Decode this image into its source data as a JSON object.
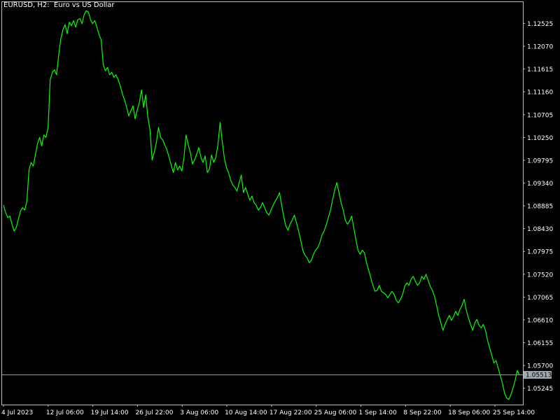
{
  "chart_window": {
    "symbol_label": "EURUSD, H2:  Euro vs US Dollar",
    "background_color": "#000000",
    "line_color": "#00ff00",
    "axis_color": "#c0c0c0",
    "bid_line_color": "#9a9a9a",
    "current_price_label": "1.05513",
    "current_price_bg": "#a0a8b0"
  },
  "chart_data": {
    "type": "line",
    "title": "EURUSD, H2:  Euro vs US Dollar",
    "xlabel": "",
    "ylabel": "",
    "grid": false,
    "ylim": [
      1.0492,
      1.1295
    ],
    "y_ticks": [
      "1.12525",
      "1.12070",
      "1.11615",
      "1.11160",
      "1.10705",
      "1.10250",
      "1.09795",
      "1.09340",
      "1.08885",
      "1.08430",
      "1.07975",
      "1.07520",
      "1.07065",
      "1.06610",
      "1.06155",
      "1.05700",
      "1.05245"
    ],
    "x_ticks": [
      "4 Jul 2023",
      "12 Jul 06:00",
      "19 Jul 14:00",
      "26 Jul 22:00",
      "3 Aug 06:00",
      "10 Aug 14:00",
      "17 Aug 22:00",
      "25 Aug 06:00",
      "1 Sep 14:00",
      "8 Sep 22:00",
      "18 Sep 06:00",
      "25 Sep 14:00"
    ],
    "current_price": 1.05513,
    "series": [
      {
        "values": [
          1.089,
          1.0875,
          1.0865,
          1.0868,
          1.0852,
          1.0838,
          1.0845,
          1.0862,
          1.0878,
          1.0885,
          1.088,
          1.0898,
          1.096,
          1.0975,
          1.0968,
          1.099,
          1.1012,
          1.1025,
          1.1008,
          1.103,
          1.1025,
          1.1045,
          1.114,
          1.1155,
          1.116,
          1.115,
          1.119,
          1.1222,
          1.124,
          1.125,
          1.1232,
          1.1255,
          1.1248,
          1.1258,
          1.1245,
          1.126,
          1.1262,
          1.1252,
          1.127,
          1.1278,
          1.1275,
          1.126,
          1.1252,
          1.1258,
          1.1245,
          1.123,
          1.122,
          1.117,
          1.1158,
          1.1165,
          1.115,
          1.1155,
          1.1145,
          1.115,
          1.114,
          1.1128,
          1.1112,
          1.11,
          1.1085,
          1.1068,
          1.1078,
          1.1088,
          1.1062,
          1.108,
          1.1095,
          1.112,
          1.1085,
          1.111,
          1.1065,
          1.104,
          1.098,
          1.0995,
          1.1015,
          1.1045,
          1.1025,
          1.102,
          1.101,
          1.1,
          1.0985,
          1.097,
          1.0955,
          1.0975,
          1.096,
          1.0968,
          1.0958,
          1.0985,
          1.103,
          1.101,
          1.0995,
          1.0972,
          1.098,
          1.0992,
          1.1005,
          1.0985,
          1.0975,
          1.0988,
          1.0955,
          1.0962,
          1.099,
          1.0975,
          1.0985,
          1.101,
          1.1055,
          1.1018,
          1.0985,
          1.0965,
          1.0955,
          1.094,
          1.093,
          1.0925,
          1.0918,
          1.0935,
          1.095,
          1.0915,
          1.0925,
          1.0912,
          1.09,
          1.0908,
          1.0895,
          1.089,
          1.088,
          1.0885,
          1.0895,
          1.0885,
          1.0875,
          1.087,
          1.088,
          1.089,
          1.0898,
          1.0905,
          1.0915,
          1.089,
          1.0868,
          1.0848,
          1.084,
          1.0852,
          1.086,
          1.087,
          1.0855,
          1.0838,
          1.082,
          1.08,
          1.079,
          1.0785,
          1.0775,
          1.078,
          1.0792,
          1.08,
          1.0805,
          1.0815,
          1.083,
          1.0838,
          1.085,
          1.0865,
          1.088,
          1.09,
          1.092,
          1.0935,
          1.0915,
          1.0895,
          1.088,
          1.086,
          1.0852,
          1.0858,
          1.0868,
          1.0845,
          1.082,
          1.08,
          1.0792,
          1.08,
          1.0795,
          1.0775,
          1.076,
          1.0745,
          1.073,
          1.0718,
          1.072,
          1.073,
          1.0718,
          1.0715,
          1.0712,
          1.0705,
          1.0712,
          1.0718,
          1.0712,
          1.07,
          1.0695,
          1.0702,
          1.0712,
          1.0728,
          1.0735,
          1.073,
          1.0742,
          1.0748,
          1.0738,
          1.073,
          1.0735,
          1.0748,
          1.0742,
          1.0752,
          1.074,
          1.0728,
          1.072,
          1.0708,
          1.069,
          1.067,
          1.0655,
          1.064,
          1.0652,
          1.0662,
          1.067,
          1.066,
          1.0668,
          1.0678,
          1.067,
          1.0682,
          1.069,
          1.0702,
          1.068,
          1.0665,
          1.0652,
          1.064,
          1.0655,
          1.0662,
          1.065,
          1.0645,
          1.0652,
          1.064,
          1.062,
          1.0605,
          1.059,
          1.0575,
          1.058,
          1.0565,
          1.055,
          1.0535,
          1.0515,
          1.0505,
          1.0502,
          1.0512,
          1.0525,
          1.054,
          1.056,
          1.0551
        ]
      }
    ]
  }
}
